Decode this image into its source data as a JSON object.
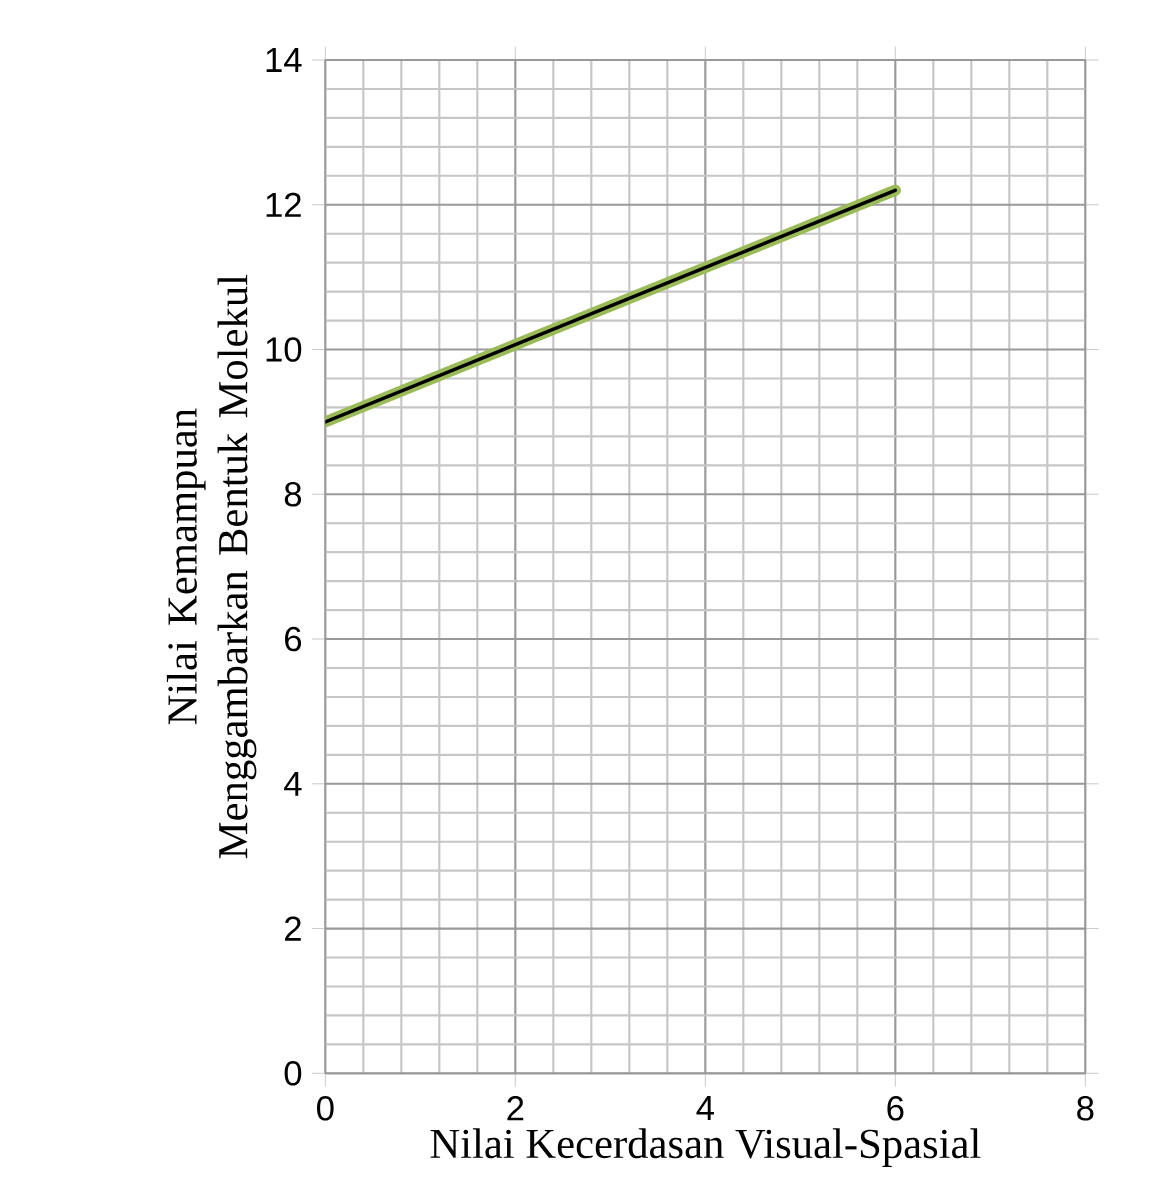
{
  "chart_data": {
    "type": "line",
    "xlabel": "Nilai Kecerdasan Visual-Spasial",
    "ylabel": "Nilai Kemampuan Menggambarkan Bentuk Molekul",
    "x": [
      0,
      6
    ],
    "series": [
      {
        "color": "#9bbb59",
        "values": [
          9.0,
          12.2
        ]
      },
      {
        "color": "#000000",
        "values": [
          9.0,
          12.2
        ]
      }
    ],
    "xlim": [
      0,
      8
    ],
    "xticks": [
      0,
      2,
      4,
      6,
      8
    ],
    "ylim": [
      0,
      14
    ],
    "yticks": [
      0,
      2,
      4,
      6,
      8,
      10,
      12,
      14
    ],
    "grid": true,
    "marker": "none",
    "line_style": "solid"
  }
}
